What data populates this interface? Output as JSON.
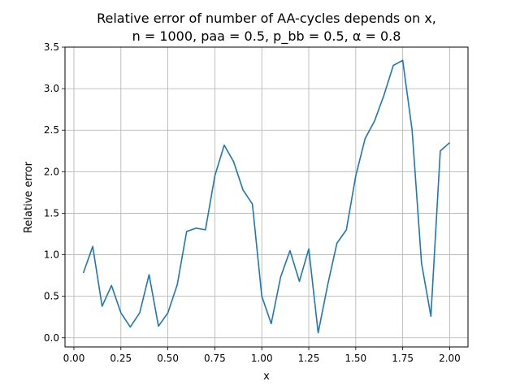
{
  "chart_data": {
    "type": "line",
    "title_line1": "Relative error of number of AA-cycles depends on x,",
    "title_line2": "n = 1000, paa = 0.5, p_bb = 0.5, α = 0.8",
    "xlabel": "x",
    "ylabel": "Relative error",
    "xlim": [
      -0.0475,
      2.0975
    ],
    "ylim": [
      -0.11,
      3.5
    ],
    "grid": true,
    "line_color": "#1f77b4",
    "x_ticks": [
      0.0,
      0.25,
      0.5,
      0.75,
      1.0,
      1.25,
      1.5,
      1.75,
      2.0
    ],
    "x_tick_labels": [
      "0.00",
      "0.25",
      "0.50",
      "0.75",
      "1.00",
      "1.25",
      "1.50",
      "1.75",
      "2.00"
    ],
    "y_ticks": [
      0.0,
      0.5,
      1.0,
      1.5,
      2.0,
      2.5,
      3.0,
      3.5
    ],
    "y_tick_labels": [
      "0.0",
      "0.5",
      "1.0",
      "1.5",
      "2.0",
      "2.5",
      "3.0",
      "3.5"
    ],
    "x": [
      0.05,
      0.1,
      0.15,
      0.2,
      0.25,
      0.3,
      0.35,
      0.4,
      0.45,
      0.5,
      0.55,
      0.6,
      0.65,
      0.7,
      0.75,
      0.8,
      0.85,
      0.9,
      0.95,
      1.0,
      1.05,
      1.1,
      1.15,
      1.2,
      1.25,
      1.3,
      1.35,
      1.4,
      1.45,
      1.5,
      1.55,
      1.6,
      1.65,
      1.7,
      1.75,
      1.8,
      1.85,
      1.9,
      1.95,
      2.0
    ],
    "y": [
      0.78,
      1.1,
      0.38,
      0.63,
      0.3,
      0.13,
      0.3,
      0.76,
      0.14,
      0.3,
      0.64,
      1.28,
      1.32,
      1.3,
      1.95,
      2.32,
      2.12,
      1.78,
      1.61,
      0.5,
      0.17,
      0.73,
      1.05,
      0.68,
      1.07,
      0.06,
      0.63,
      1.14,
      1.3,
      1.95,
      2.4,
      2.61,
      2.92,
      3.28,
      3.34,
      2.5,
      0.9,
      0.26,
      2.25,
      2.35
    ]
  }
}
